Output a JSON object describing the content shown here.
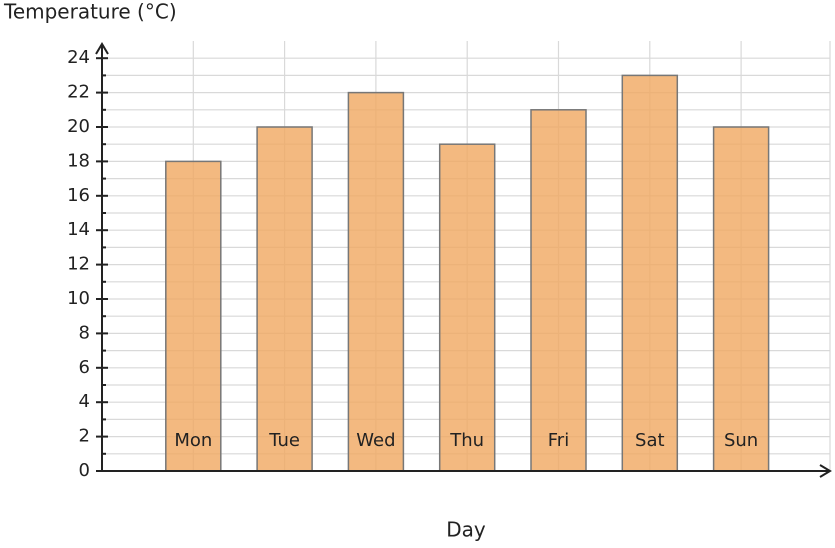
{
  "chart_data": {
    "type": "bar",
    "x_label": "Day",
    "y_label": "Temperature (°C)",
    "categories": [
      "Mon",
      "Tue",
      "Wed",
      "Thu",
      "Fri",
      "Sat",
      "Sun"
    ],
    "values": [
      18,
      20,
      22,
      19,
      21,
      23,
      20
    ],
    "color": "#f0a860",
    "ylim": [
      0,
      25
    ],
    "yticks": [
      0,
      2,
      4,
      6,
      8,
      10,
      12,
      14,
      16,
      18,
      20,
      22,
      24
    ],
    "minor_yticks": [
      1,
      3,
      5,
      7,
      9,
      11,
      13,
      15,
      17,
      19,
      21,
      23
    ],
    "grid": true
  }
}
